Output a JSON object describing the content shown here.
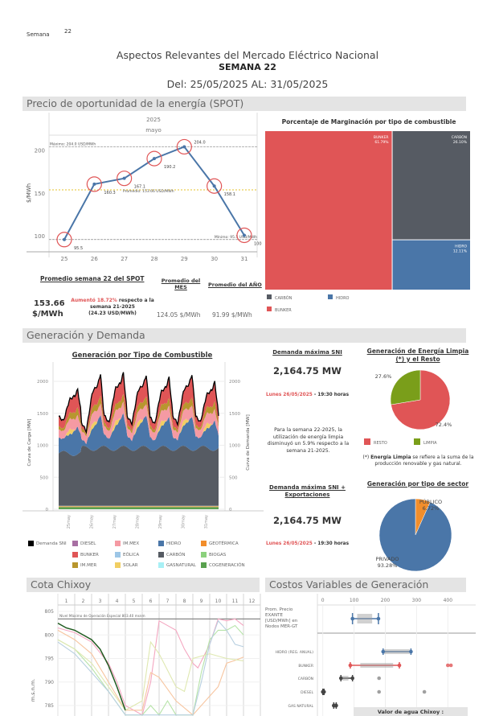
{
  "header": {
    "week_label": "Semana",
    "week_number": "22",
    "title": "Aspectos Relevantes del Mercado Eléctrico Nacional",
    "subtitle": "SEMANA 22",
    "date_range": "Del: 25/05/2025  AL: 31/05/2025"
  },
  "sections": {
    "spot": "Precio de oportunidad de la energía (SPOT)",
    "generation": "Generación y Demanda",
    "chixoy": "Cota Chixoy",
    "costs": "Costos Variables de Generación"
  },
  "spot": {
    "avg_week_title": "Promedio semana 22 del SPOT",
    "avg_week_value": "153.66",
    "avg_week_unit": "$/MWh",
    "change_red": "Aumentó 18.72%",
    "change_rest": " respecto a la semana 21-2025",
    "change_abs": "(24.23 USD/MWh)",
    "month_title": "Promedio del MES",
    "month_value": "124.05 $/MWh",
    "year_title": "Promedio del AÑO",
    "year_value": "91.99 $/MWh"
  },
  "chart_data": [
    {
      "id": "spot",
      "type": "line",
      "year_label": "2025",
      "month_label": "mayo",
      "ylabel": "$/MWh",
      "x": [
        25,
        26,
        27,
        28,
        29,
        30,
        31
      ],
      "values": [
        95.5,
        160.3,
        167.1,
        190.2,
        204.0,
        158.1,
        100.5
      ],
      "yticks": [
        100,
        150,
        200
      ],
      "ylim": [
        88,
        215
      ],
      "reference_lines": [
        {
          "label": "Máximo: 204.0 USD/MWh",
          "value": 204.0,
          "color": "#888888"
        },
        {
          "label": "Promedio: 153.66 USD/MWh",
          "value": 153.66,
          "color": "#e6c229"
        },
        {
          "label": "Mínimo: 95.5 USD/MWh",
          "value": 95.5,
          "color": "#888888"
        }
      ],
      "line_color": "#4a76a8",
      "marker_color": "#e05556"
    },
    {
      "id": "marginacion",
      "type": "treemap",
      "title": "Porcentaje de Marginación por tipo de combustible",
      "items": [
        {
          "name": "BUNKER",
          "value": 61.79,
          "label": "61.79%",
          "color": "#e05556"
        },
        {
          "name": "CARBÓN",
          "value": 26.1,
          "label": "26.10%",
          "color": "#565b63"
        },
        {
          "name": "HIDRO",
          "value": 12.11,
          "label": "12.11%",
          "color": "#4a76a8"
        }
      ],
      "legend": [
        "CARBÓN",
        "HIDRO",
        "BUNKER"
      ]
    },
    {
      "id": "generacion",
      "type": "area",
      "title": "Generación por Tipo de Combustible",
      "ylabel": "Curva de Carga [MW]",
      "ylabel_right": "Curva de Demanda [MW]",
      "yticks": [
        0,
        500,
        1000,
        1500,
        2000
      ],
      "ylim": [
        0,
        2200
      ],
      "categories": [
        "25may",
        "26may",
        "27may",
        "28may",
        "29may",
        "30may",
        "31may"
      ],
      "daily_peak_demand": [
        1870,
        2120,
        2130,
        2100,
        2060,
        2110,
        1990
      ],
      "daily_min_demand": [
        1380,
        1220,
        1350,
        1340,
        1330,
        1340,
        1360
      ],
      "legend": [
        {
          "name": "Demanda SNI",
          "color": "#000000"
        },
        {
          "name": "DIESEL",
          "color": "#a86fa3"
        },
        {
          "name": "IM.MEX",
          "color": "#f59aa3"
        },
        {
          "name": "HIDRO",
          "color": "#4a76a8"
        },
        {
          "name": "GEOTÉRMICA",
          "color": "#f28e2b"
        },
        {
          "name": "BUNKER",
          "color": "#e05556"
        },
        {
          "name": "EÓLICA",
          "color": "#9dc6e6"
        },
        {
          "name": "CARBÓN",
          "color": "#565b63"
        },
        {
          "name": "BIOGAS",
          "color": "#8cd17d"
        },
        {
          "name": "IM.MER",
          "color": "#b8962e"
        },
        {
          "name": "SOLAR",
          "color": "#f1ce63"
        },
        {
          "name": "GASNATURAL",
          "color": "#a8f0f5"
        },
        {
          "name": "COGENERACIÓN",
          "color": "#59a14f"
        }
      ]
    },
    {
      "id": "limpia",
      "type": "pie",
      "title": "Generación de Energía Limpia (*) y el Resto",
      "slices": [
        {
          "name": "RESTO",
          "value": 72.4,
          "label": "72.4%",
          "color": "#e05556"
        },
        {
          "name": "LIMPIA",
          "value": 27.6,
          "label": "27.6%",
          "color": "#7a9e1a"
        }
      ]
    },
    {
      "id": "sector",
      "type": "pie",
      "title": "Generación por tipo de sector",
      "slices": [
        {
          "name": "PÚBLICO",
          "value": 6.72,
          "label": "6.72%",
          "color": "#f28e2b"
        },
        {
          "name": "PRIVADO",
          "value": 93.28,
          "label": "93.28%",
          "color": "#4a76a8"
        }
      ]
    },
    {
      "id": "chixoy",
      "type": "line",
      "ylabel": "m.s.n.m.",
      "xticks": [
        "1",
        "2",
        "3",
        "4",
        "5",
        "6",
        "7",
        "8",
        "9",
        "10",
        "11",
        "12"
      ],
      "yticks": [
        785,
        790,
        795,
        800,
        805
      ],
      "ylim": [
        782,
        806
      ],
      "reference_line": {
        "label": "Nivel Máximo de Operación Especial 803.40 msnm",
        "value": 803.4
      },
      "series": [
        {
          "color": "#f4a6c0",
          "x": [
            1,
            2,
            3,
            4,
            4.5,
            5,
            6,
            6.5,
            7,
            7.5,
            8,
            8.5,
            9,
            9.3,
            10,
            10.5,
            11,
            11.5,
            12
          ],
          "y": [
            801.5,
            800.5,
            798.5,
            794,
            790,
            785,
            783,
            790,
            803,
            802,
            801,
            797,
            794,
            793,
            798,
            803.4,
            803,
            803.4,
            802
          ]
        },
        {
          "color": "#f7c59f",
          "x": [
            1,
            2,
            3,
            4,
            5,
            6,
            6.5,
            7,
            8,
            9,
            10,
            10.5,
            11,
            11.5,
            12
          ],
          "y": [
            801,
            799,
            796,
            790,
            784,
            784,
            792,
            791,
            786,
            783,
            787,
            789,
            794,
            794.6,
            795.3
          ]
        },
        {
          "color": "#b6e3a8",
          "x": [
            1,
            2,
            3,
            4,
            5,
            6,
            6.5,
            7,
            7.5,
            8,
            9,
            9.5,
            10,
            10.5,
            11,
            11.5,
            12
          ],
          "y": [
            799,
            797,
            793,
            788,
            783,
            783,
            785,
            783,
            786,
            783,
            783,
            792,
            799,
            801,
            801,
            802,
            800
          ]
        },
        {
          "color": "#dfe8b0",
          "x": [
            1,
            2,
            3,
            4,
            5,
            6,
            6.5,
            7,
            8,
            8.5,
            9,
            10,
            11,
            12
          ],
          "y": [
            799,
            797,
            794,
            789,
            784,
            786,
            798.5,
            796,
            789,
            788,
            795,
            796,
            795,
            794.5
          ]
        },
        {
          "color": "#b7cfe0",
          "x": [
            1,
            2,
            3,
            4,
            5,
            6,
            9,
            9.5,
            10,
            10.5,
            11,
            11.5,
            12
          ],
          "y": [
            798.5,
            796,
            792,
            788,
            783,
            783,
            783,
            790,
            798,
            803,
            801,
            798,
            797.5
          ]
        },
        {
          "color": "#1f5a1f",
          "x": [
            1,
            1.5,
            2,
            2.5,
            3,
            3.5,
            4,
            4.5,
            5
          ],
          "y": [
            802.5,
            801.5,
            801,
            800,
            799,
            797,
            793.5,
            789,
            784
          ]
        }
      ]
    },
    {
      "id": "costos",
      "type": "boxplot",
      "xticks": [
        0,
        100,
        200,
        300,
        400
      ],
      "xlim": [
        -10,
        430
      ],
      "rows": [
        {
          "label": "Prom. Precio EXANTE [USD/MWh] en Nodos MER-GT",
          "min": 95,
          "q1": 110,
          "q3": 158,
          "max": 178,
          "color": "#4a76a8",
          "outliers": []
        },
        {
          "label": "HIDRO (REG. ANUAL)",
          "min": 193,
          "q1": 196,
          "q3": 278,
          "max": 282,
          "color": "#4a76a8",
          "outliers": []
        },
        {
          "label": "BUNKER",
          "min": 88,
          "q1": 120,
          "q3": 225,
          "max": 245,
          "color": "#e05556",
          "outliers": [
            400,
            410
          ]
        },
        {
          "label": "CARBÓN",
          "min": 58,
          "q1": 62,
          "q3": 82,
          "max": 95,
          "color": "#444444",
          "outliers": [
            180
          ]
        },
        {
          "label": "DIESEL",
          "min": 0,
          "q1": 1,
          "q3": 3,
          "max": 4,
          "color": "#444444",
          "outliers": [
            180,
            325
          ]
        },
        {
          "label": "GAS NATURAL",
          "min": 35,
          "q1": 37,
          "q3": 41,
          "max": 43,
          "color": "#444444",
          "outliers": []
        }
      ]
    }
  ],
  "demand": {
    "max_sni_title": "Demanda máxima SNI",
    "max_sni_value": "2,164.75 MW",
    "max_sni_date": "Lunes 26/05/2025",
    "max_sni_time": " - 19:30 horas",
    "clean_note": "Para la semana 22-2025,  la utilización de energía limpia disminuyó un 5.9% respecto a la semana 21-2025.",
    "max_exp_title": "Demanda máxima SNI + Exportaciones",
    "max_exp_value": "2,164.75 MW",
    "max_exp_date": "Lunes 26/05/2025",
    "max_exp_time": " - 19:30 horas",
    "footnote_star": "(*) ",
    "footnote_bold": "Energía Limpia",
    "footnote_rest": " se refiere a la suma de la producción renovable y gas natural."
  },
  "costs": {
    "water_value_label": "Valor de agua Chixoy :"
  }
}
